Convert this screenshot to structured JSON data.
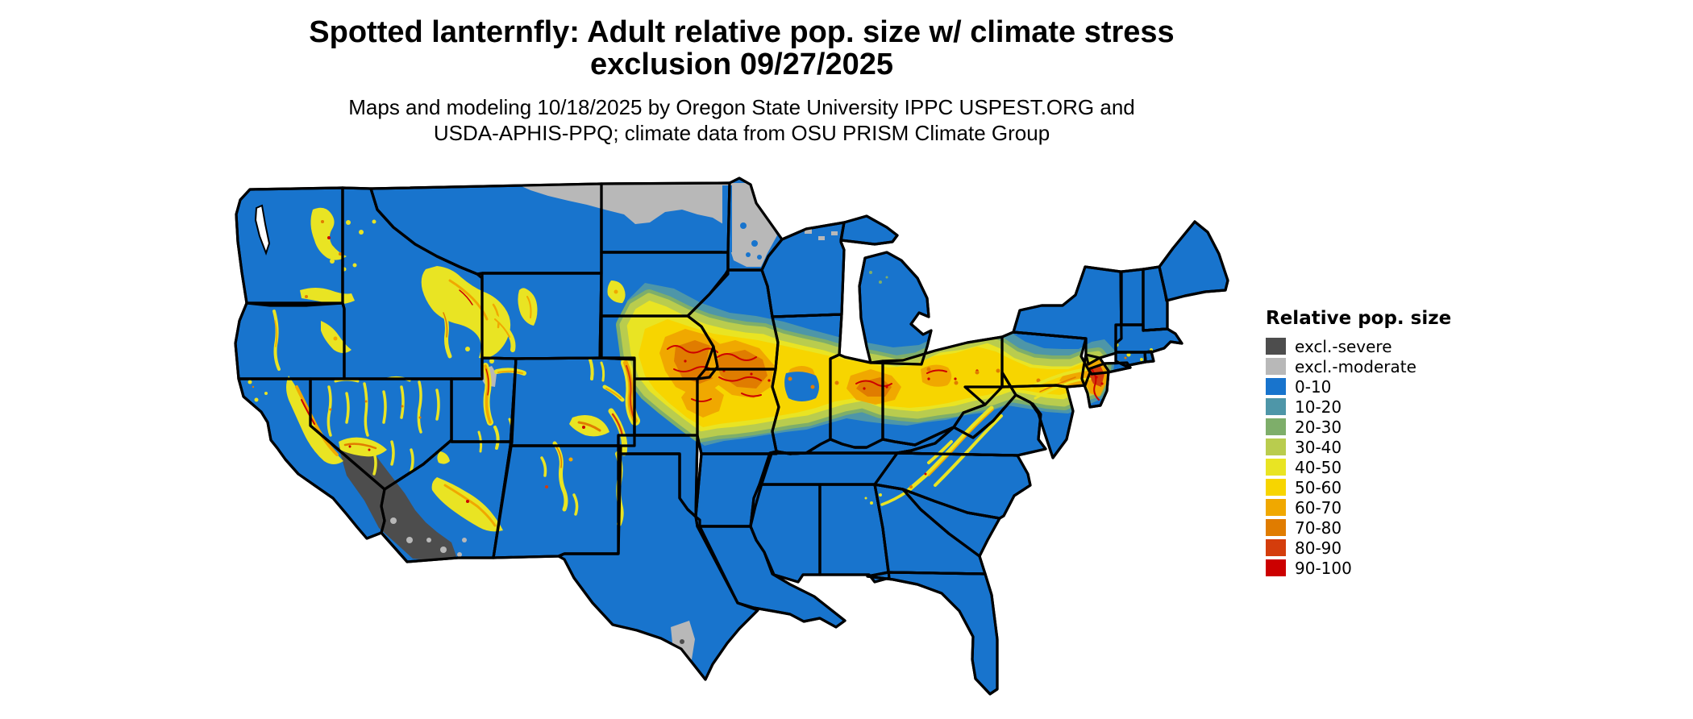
{
  "figure": {
    "title": "Spotted lanternfly: Adult relative pop. size w/ climate stress\nexclusion 09/27/2025",
    "subtitle": "Maps and modeling 10/18/2025 by Oregon State University IPPC USPEST.ORG and\nUSDA-APHIS-PPQ; climate data from OSU PRISM Climate Group"
  },
  "legend": {
    "title": "Relative pop. size",
    "items": [
      {
        "label": "excl.-severe",
        "color": "#4D4D4D"
      },
      {
        "label": "excl.-moderate",
        "color": "#B8B8B8"
      },
      {
        "label": "0-10",
        "color": "#1874CD"
      },
      {
        "label": "10-20",
        "color": "#4E96A8"
      },
      {
        "label": "20-30",
        "color": "#7EAE6A"
      },
      {
        "label": "30-40",
        "color": "#B9CC4E"
      },
      {
        "label": "40-50",
        "color": "#E9E423"
      },
      {
        "label": "50-60",
        "color": "#F7D500"
      },
      {
        "label": "60-70",
        "color": "#F0A800"
      },
      {
        "label": "70-80",
        "color": "#E07C00"
      },
      {
        "label": "80-90",
        "color": "#D43D0C"
      },
      {
        "label": "90-100",
        "color": "#CC0000"
      }
    ]
  }
}
